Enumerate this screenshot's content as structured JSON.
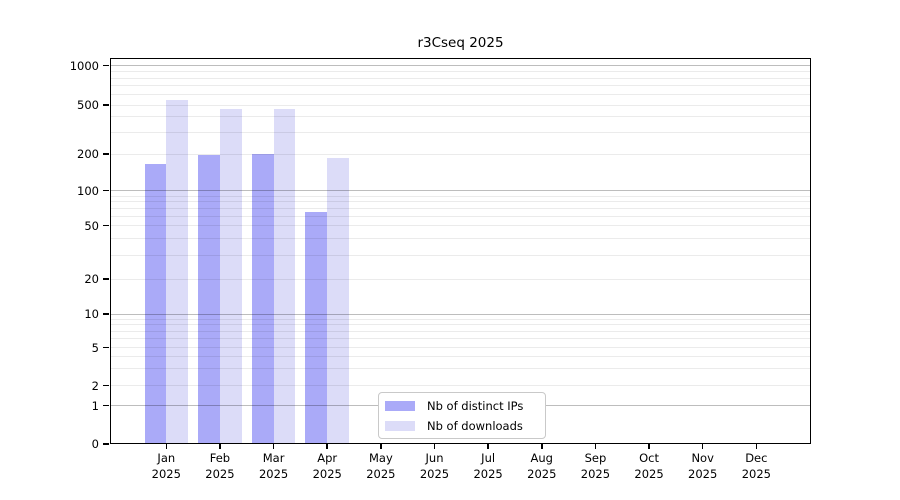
{
  "title": "r3Cseq 2025",
  "legend": {
    "items": [
      {
        "label": "Nb of distinct IPs",
        "color": "#aaaaf8"
      },
      {
        "label": "Nb of downloads",
        "color": "#dcdcf8"
      }
    ]
  },
  "yaxis": {
    "tick_labels": [
      "0",
      "1",
      "2",
      "5",
      "10",
      "20",
      "50",
      "100",
      "200",
      "500",
      "1000"
    ]
  },
  "xaxis": {
    "months": [
      "Jan",
      "Feb",
      "Mar",
      "Apr",
      "May",
      "Jun",
      "Jul",
      "Aug",
      "Sep",
      "Oct",
      "Nov",
      "Dec"
    ],
    "year": "2025"
  },
  "chart_data": {
    "type": "bar",
    "title": "r3Cseq 2025",
    "categories": [
      "Jan 2025",
      "Feb 2025",
      "Mar 2025",
      "Apr 2025",
      "May 2025",
      "Jun 2025",
      "Jul 2025",
      "Aug 2025",
      "Sep 2025",
      "Oct 2025",
      "Nov 2025",
      "Dec 2025"
    ],
    "series": [
      {
        "name": "Nb of distinct IPs",
        "color": "#aaaaf8",
        "values": [
          165,
          195,
          200,
          65,
          null,
          null,
          null,
          null,
          null,
          null,
          null,
          null
        ]
      },
      {
        "name": "Nb of downloads",
        "color": "#dcdcf8",
        "values": [
          550,
          460,
          460,
          185,
          null,
          null,
          null,
          null,
          null,
          null,
          null,
          null
        ]
      }
    ],
    "yaxis_ticks": [
      0,
      1,
      2,
      5,
      10,
      20,
      50,
      100,
      200,
      500,
      1000
    ],
    "yscale": "log-like with 0 baseline",
    "ylim": [
      0,
      1400
    ],
    "grid": true,
    "legend_position": "inside bottom-center"
  }
}
